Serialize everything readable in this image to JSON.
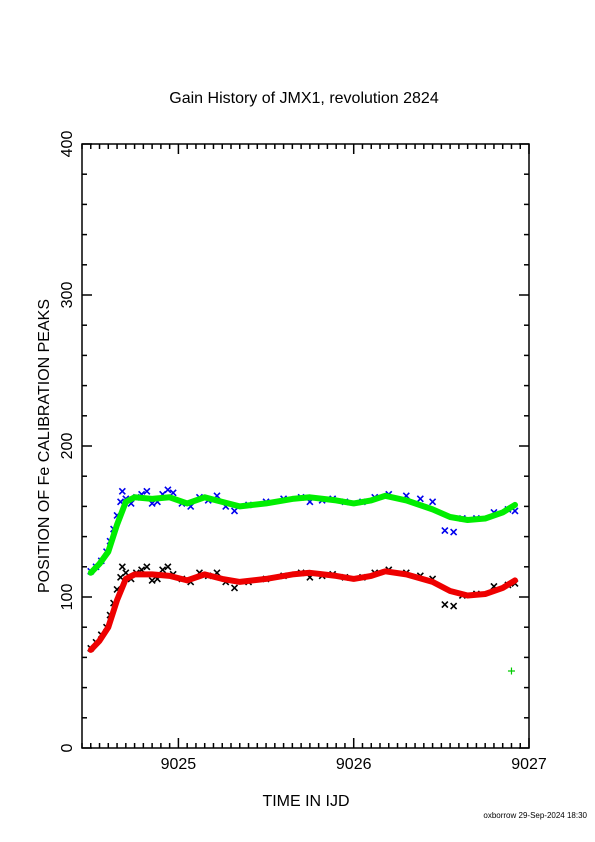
{
  "chart_data": {
    "type": "scatter",
    "title": "Gain History of JMX1, revolution 2824",
    "xlabel": "TIME IN IJD",
    "ylabel": "POSITION OF Fe CALIBRATION PEAKS",
    "xlim": [
      9024.45,
      9027.0
    ],
    "ylim": [
      0,
      400
    ],
    "x_ticks": [
      9025,
      9026,
      9027
    ],
    "y_ticks": [
      0,
      100,
      200,
      300,
      400
    ],
    "grid": false,
    "credit": "oxborrow 29-Sep-2024 18:30",
    "colors": {
      "upper_points": "#0000ee",
      "upper_fit": "#00ee00",
      "lower_points": "#000000",
      "lower_fit": "#ee0000",
      "isolated_point": "#00cc00"
    },
    "series": [
      {
        "points": [
          [
            9024.5,
            117
          ],
          [
            9024.53,
            120
          ],
          [
            9024.56,
            124
          ],
          [
            9024.59,
            130
          ],
          [
            9024.61,
            137
          ],
          [
            9024.63,
            145
          ],
          [
            9024.65,
            154
          ],
          [
            9024.67,
            163
          ],
          [
            9024.68,
            170
          ],
          [
            9024.7,
            165
          ],
          [
            9024.73,
            162
          ],
          [
            9024.76,
            166
          ],
          [
            9024.79,
            168
          ],
          [
            9024.82,
            170
          ],
          [
            9024.85,
            162
          ],
          [
            9024.88,
            163
          ],
          [
            9024.91,
            168
          ],
          [
            9024.94,
            171
          ],
          [
            9024.97,
            169
          ],
          [
            9025.02,
            162
          ],
          [
            9025.07,
            160
          ],
          [
            9025.12,
            166
          ],
          [
            9025.17,
            164
          ],
          [
            9025.22,
            167
          ],
          [
            9025.27,
            160
          ],
          [
            9025.32,
            157
          ],
          [
            9025.4,
            161
          ],
          [
            9025.5,
            163
          ],
          [
            9025.6,
            165
          ],
          [
            9025.7,
            166
          ],
          [
            9025.75,
            163
          ],
          [
            9025.82,
            164
          ],
          [
            9025.88,
            165
          ],
          [
            9025.95,
            163
          ],
          [
            9026.05,
            163
          ],
          [
            9026.12,
            166
          ],
          [
            9026.2,
            168
          ],
          [
            9026.3,
            167
          ],
          [
            9026.38,
            165
          ],
          [
            9026.45,
            163
          ],
          [
            9026.52,
            144
          ],
          [
            9026.57,
            143
          ],
          [
            9026.62,
            152
          ],
          [
            9026.7,
            152
          ],
          [
            9026.8,
            156
          ],
          [
            9026.88,
            158
          ],
          [
            9026.92,
            157
          ]
        ]
      },
      {
        "fit": [
          [
            9024.5,
            116
          ],
          [
            9024.55,
            122
          ],
          [
            9024.6,
            130
          ],
          [
            9024.65,
            148
          ],
          [
            9024.7,
            163
          ],
          [
            9024.75,
            166
          ],
          [
            9024.85,
            165
          ],
          [
            9024.95,
            166
          ],
          [
            9025.05,
            162
          ],
          [
            9025.15,
            166
          ],
          [
            9025.25,
            163
          ],
          [
            9025.35,
            160
          ],
          [
            9025.5,
            162
          ],
          [
            9025.65,
            165
          ],
          [
            9025.75,
            166
          ],
          [
            9025.9,
            164
          ],
          [
            9026.0,
            162
          ],
          [
            9026.1,
            164
          ],
          [
            9026.18,
            167
          ],
          [
            9026.3,
            164
          ],
          [
            9026.45,
            158
          ],
          [
            9026.55,
            153
          ],
          [
            9026.65,
            151
          ],
          [
            9026.75,
            152
          ],
          [
            9026.85,
            156
          ],
          [
            9026.92,
            161
          ]
        ]
      },
      {
        "points": [
          [
            9024.5,
            66
          ],
          [
            9024.53,
            70
          ],
          [
            9024.56,
            75
          ],
          [
            9024.59,
            80
          ],
          [
            9024.61,
            88
          ],
          [
            9024.63,
            96
          ],
          [
            9024.65,
            105
          ],
          [
            9024.67,
            113
          ],
          [
            9024.68,
            120
          ],
          [
            9024.7,
            116
          ],
          [
            9024.73,
            112
          ],
          [
            9024.76,
            116
          ],
          [
            9024.79,
            118
          ],
          [
            9024.82,
            120
          ],
          [
            9024.85,
            111
          ],
          [
            9024.88,
            112
          ],
          [
            9024.91,
            118
          ],
          [
            9024.94,
            120
          ],
          [
            9024.97,
            115
          ],
          [
            9025.02,
            112
          ],
          [
            9025.07,
            110
          ],
          [
            9025.12,
            116
          ],
          [
            9025.17,
            114
          ],
          [
            9025.22,
            116
          ],
          [
            9025.27,
            110
          ],
          [
            9025.32,
            106
          ],
          [
            9025.4,
            110
          ],
          [
            9025.5,
            112
          ],
          [
            9025.6,
            114
          ],
          [
            9025.7,
            116
          ],
          [
            9025.75,
            113
          ],
          [
            9025.82,
            114
          ],
          [
            9025.88,
            115
          ],
          [
            9025.95,
            113
          ],
          [
            9026.05,
            113
          ],
          [
            9026.12,
            116
          ],
          [
            9026.2,
            118
          ],
          [
            9026.3,
            116
          ],
          [
            9026.38,
            114
          ],
          [
            9026.45,
            112
          ],
          [
            9026.52,
            95
          ],
          [
            9026.57,
            94
          ],
          [
            9026.62,
            101
          ],
          [
            9026.7,
            102
          ],
          [
            9026.8,
            107
          ],
          [
            9026.88,
            108
          ],
          [
            9026.92,
            109
          ]
        ]
      },
      {
        "fit": [
          [
            9024.5,
            65
          ],
          [
            9024.55,
            71
          ],
          [
            9024.6,
            80
          ],
          [
            9024.65,
            98
          ],
          [
            9024.7,
            112
          ],
          [
            9024.75,
            115
          ],
          [
            9024.85,
            115
          ],
          [
            9024.95,
            114
          ],
          [
            9025.05,
            111
          ],
          [
            9025.15,
            115
          ],
          [
            9025.25,
            112
          ],
          [
            9025.35,
            110
          ],
          [
            9025.5,
            112
          ],
          [
            9025.65,
            115
          ],
          [
            9025.75,
            116
          ],
          [
            9025.9,
            114
          ],
          [
            9026.0,
            112
          ],
          [
            9026.1,
            114
          ],
          [
            9026.18,
            117
          ],
          [
            9026.3,
            115
          ],
          [
            9026.45,
            110
          ],
          [
            9026.55,
            104
          ],
          [
            9026.65,
            101
          ],
          [
            9026.75,
            102
          ],
          [
            9026.85,
            106
          ],
          [
            9026.92,
            111
          ]
        ]
      },
      {
        "points": [
          [
            9026.9,
            51
          ]
        ]
      }
    ]
  }
}
